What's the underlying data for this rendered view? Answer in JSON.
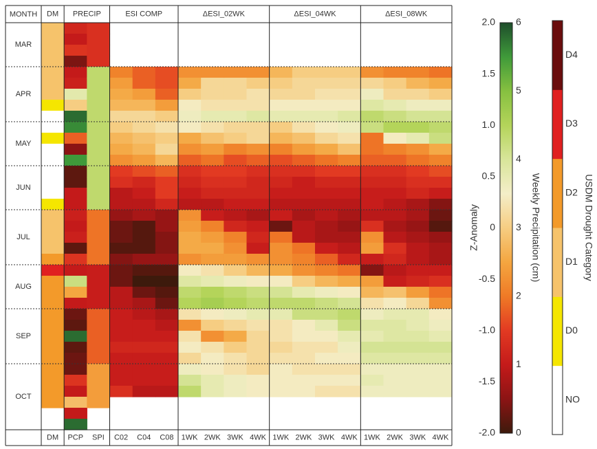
{
  "chart_data": {
    "type": "heatmap",
    "row_header": "MONTH",
    "categories": [
      "MAR",
      null,
      null,
      null,
      "APR",
      null,
      null,
      null,
      null,
      "MAY",
      null,
      null,
      null,
      "JUN",
      null,
      null,
      null,
      "JUL",
      null,
      null,
      null,
      null,
      "AUG",
      null,
      null,
      null,
      "SEP",
      null,
      null,
      null,
      null,
      "OCT",
      null,
      null,
      null,
      null,
      null
    ],
    "groups": [
      {
        "label": "DM",
        "columns": [
          {
            "name": "DM",
            "scale": "category",
            "values": [
              2,
              2,
              2,
              2,
              2,
              2,
              2,
              1,
              0,
              0,
              1,
              0,
              0,
              0,
              0,
              0,
              1,
              2,
              2,
              2,
              2,
              3,
              4,
              3,
              3,
              3,
              3,
              3,
              3,
              3,
              3,
              3,
              3,
              3,
              3,
              null,
              null
            ]
          }
        ]
      },
      {
        "label": "PRECIP",
        "columns": [
          {
            "name": "PCP",
            "scale": "precip",
            "values": [
              1.2,
              1.0,
              1.4,
              0.4,
              1.0,
              1.1,
              3.8,
              3.0,
              5.8,
              5.6,
              1.8,
              0.5,
              5.5,
              0.2,
              0.2,
              1.0,
              1.0,
              1.1,
              1.0,
              1.1,
              0.2,
              1.4,
              1.0,
              4.2,
              2.5,
              1.0,
              0.3,
              0.2,
              5.8,
              0.2,
              0.3,
              0.3,
              1.4,
              1.0,
              2.8,
              1.0,
              5.8
            ]
          },
          {
            "name": "SPI",
            "scale": "z",
            "values": [
              -1.1,
              -1.1,
              -1.1,
              -1.1,
              0.9,
              0.9,
              0.9,
              0.9,
              0.9,
              0.9,
              0.9,
              0.9,
              0.9,
              0.9,
              0.9,
              0.9,
              0.9,
              -0.7,
              -0.7,
              -0.7,
              -0.7,
              -0.7,
              -1.3,
              -1.3,
              -1.3,
              -1.3,
              -0.8,
              -0.8,
              -0.8,
              -0.8,
              -0.8,
              -0.4,
              -0.4,
              -0.4,
              -0.4,
              null,
              null
            ]
          }
        ]
      },
      {
        "label": "ESI COMP",
        "columns": [
          {
            "name": "C02",
            "scale": "z",
            "values": [
              null,
              null,
              null,
              null,
              -0.6,
              -0.4,
              -0.3,
              -0.2,
              0.1,
              0.0,
              -0.2,
              -0.3,
              -0.5,
              -1.0,
              -1.1,
              -1.4,
              -1.4,
              -1.6,
              -1.8,
              -1.8,
              -1.9,
              -1.7,
              -1.8,
              -1.8,
              -1.4,
              -1.4,
              -1.3,
              -1.3,
              -1.3,
              -1.2,
              -1.3,
              -1.3,
              -1.3,
              -1.1,
              null,
              null,
              null
            ]
          },
          {
            "name": "C04",
            "scale": "z",
            "values": [
              null,
              null,
              null,
              null,
              -0.8,
              -0.8,
              -0.4,
              -0.2,
              0.1,
              0.1,
              -0.1,
              -0.2,
              -0.4,
              -0.9,
              -1.2,
              -1.3,
              -1.4,
              -1.5,
              -1.9,
              -1.9,
              -1.9,
              -1.6,
              -1.9,
              -2.0,
              -1.8,
              -1.5,
              -1.4,
              -1.3,
              -1.3,
              -1.2,
              -1.3,
              -1.3,
              -1.3,
              -1.4,
              null,
              null,
              null
            ]
          },
          {
            "name": "C08",
            "scale": "z",
            "values": [
              null,
              null,
              null,
              null,
              -0.9,
              -0.9,
              -0.8,
              -0.4,
              0.0,
              0.2,
              0.0,
              0.1,
              -0.2,
              -0.8,
              -1.0,
              -1.0,
              -1.2,
              -1.6,
              -1.6,
              -1.7,
              -1.7,
              -1.6,
              -1.9,
              -2.0,
              -1.9,
              -1.8,
              -1.5,
              -1.4,
              -1.3,
              -1.2,
              -1.3,
              -1.3,
              -1.3,
              -1.4,
              null,
              null,
              null
            ]
          }
        ]
      },
      {
        "label": "ΔESI_02WK",
        "columns": [
          {
            "name": "1WK",
            "scale": "z",
            "values": [
              null,
              null,
              null,
              null,
              -0.5,
              -0.3,
              0.0,
              0.3,
              0.4,
              0.3,
              -0.3,
              -0.5,
              -0.8,
              -1.1,
              -1.2,
              -1.3,
              -1.4,
              -0.5,
              -0.4,
              -0.3,
              -0.3,
              -0.5,
              0.3,
              0.6,
              0.9,
              1.0,
              0.2,
              -0.5,
              0.2,
              0.3,
              0.1,
              0.4,
              0.7,
              0.9,
              null,
              null,
              null
            ]
          },
          {
            "name": "2WK",
            "scale": "z",
            "values": [
              null,
              null,
              null,
              null,
              -0.5,
              0.1,
              0.1,
              0.2,
              0.5,
              0.2,
              -0.1,
              -0.4,
              -0.7,
              -1.0,
              -1.1,
              -1.2,
              -1.4,
              -1.3,
              -0.6,
              -0.4,
              -0.3,
              -0.4,
              0.2,
              0.5,
              1.0,
              1.1,
              0.3,
              0.0,
              -0.5,
              0.2,
              0.3,
              0.3,
              0.5,
              0.5,
              null,
              null,
              null
            ]
          },
          {
            "name": "3WK",
            "scale": "z",
            "values": [
              null,
              null,
              null,
              null,
              -0.5,
              0.1,
              0.1,
              0.2,
              0.5,
              0.1,
              0.0,
              -0.6,
              -0.9,
              -1.0,
              -1.1,
              -1.2,
              -1.3,
              -1.4,
              -1.2,
              -0.6,
              -0.5,
              -0.4,
              0.0,
              0.4,
              0.9,
              1.0,
              0.4,
              0.1,
              -0.3,
              0.0,
              0.2,
              0.2,
              0.4,
              0.4,
              null,
              null,
              null
            ]
          },
          {
            "name": "4WK",
            "scale": "z",
            "values": [
              null,
              null,
              null,
              null,
              -0.5,
              0.0,
              0.2,
              0.2,
              0.6,
              0.1,
              0.1,
              -0.5,
              -0.8,
              -1.1,
              -1.2,
              -1.2,
              -1.3,
              -1.5,
              -1.3,
              -1.2,
              -1.3,
              -0.5,
              -0.2,
              0.3,
              0.8,
              0.9,
              0.5,
              0.2,
              0.1,
              0.1,
              0.1,
              0.1,
              0.3,
              0.3,
              null,
              null,
              null
            ]
          }
        ]
      },
      {
        "label": "ΔESI_04WK",
        "columns": [
          {
            "name": "1WK",
            "scale": "z",
            "values": [
              null,
              null,
              null,
              null,
              -0.2,
              0.0,
              0.1,
              0.3,
              0.5,
              0.0,
              -0.2,
              -0.6,
              -0.9,
              -1.1,
              -1.2,
              -1.3,
              -1.4,
              -1.3,
              -1.8,
              -0.7,
              -0.5,
              -0.5,
              -0.3,
              0.3,
              0.7,
              0.9,
              0.5,
              0.2,
              0.2,
              0.1,
              0.2,
              0.3,
              0.3,
              0.3,
              null,
              null,
              null
            ]
          },
          {
            "name": "2WK",
            "scale": "z",
            "values": [
              null,
              null,
              null,
              null,
              0.0,
              0.1,
              0.1,
              0.3,
              0.5,
              0.2,
              -0.1,
              -0.4,
              -0.8,
              -1.1,
              -1.3,
              -1.3,
              -1.4,
              -1.5,
              -1.4,
              -1.4,
              -0.7,
              -0.6,
              -0.5,
              0.0,
              0.5,
              0.9,
              0.8,
              0.3,
              0.3,
              0.2,
              0.2,
              0.2,
              0.3,
              0.3,
              null,
              null,
              null
            ]
          },
          {
            "name": "3WK",
            "scale": "z",
            "values": [
              null,
              null,
              null,
              null,
              0.0,
              0.1,
              0.2,
              0.3,
              0.5,
              0.3,
              0.1,
              -0.3,
              -0.7,
              -1.0,
              -1.2,
              -1.3,
              -1.4,
              -1.4,
              -1.5,
              -1.5,
              -1.3,
              -0.8,
              -0.6,
              -0.2,
              0.4,
              0.8,
              0.8,
              0.5,
              0.3,
              0.2,
              0.3,
              0.2,
              0.3,
              0.2,
              null,
              null,
              null
            ]
          },
          {
            "name": "4WK",
            "scale": "z",
            "values": [
              null,
              null,
              null,
              null,
              0.0,
              0.1,
              0.2,
              0.3,
              0.6,
              0.4,
              0.2,
              -0.1,
              -0.6,
              -1.0,
              -1.2,
              -1.3,
              -1.4,
              -1.5,
              -1.6,
              -1.5,
              -1.4,
              -1.2,
              -0.7,
              -0.3,
              0.3,
              0.7,
              0.9,
              0.8,
              0.5,
              0.4,
              0.3,
              0.2,
              0.3,
              0.2,
              null,
              null,
              null
            ]
          }
        ]
      },
      {
        "label": "ΔESI_08WK",
        "columns": [
          {
            "name": "1WK",
            "scale": "z",
            "values": [
              null,
              null,
              null,
              null,
              -0.5,
              0.1,
              0.4,
              0.6,
              0.9,
              0.8,
              -0.7,
              -0.7,
              -0.8,
              -1.1,
              -1.2,
              -1.3,
              -1.3,
              -1.4,
              -1.1,
              -0.5,
              -0.4,
              -1.3,
              -1.7,
              -0.4,
              -0.2,
              0.2,
              0.4,
              0.6,
              0.5,
              0.7,
              0.6,
              0.4,
              0.5,
              0.4,
              null,
              null,
              null
            ]
          },
          {
            "name": "2WK",
            "scale": "z",
            "values": [
              null,
              null,
              null,
              null,
              -0.6,
              0.0,
              0.1,
              0.5,
              0.8,
              1.0,
              0.3,
              -0.6,
              -0.8,
              -1.1,
              -1.2,
              -1.3,
              -1.4,
              -1.4,
              -1.5,
              -1.4,
              -1.1,
              -1.2,
              -1.4,
              -1.3,
              -0.1,
              0.3,
              0.5,
              0.6,
              0.6,
              0.7,
              0.6,
              0.4,
              0.4,
              0.4,
              null,
              null,
              null
            ]
          },
          {
            "name": "3WK",
            "scale": "z",
            "values": [
              null,
              null,
              null,
              null,
              -0.6,
              -0.2,
              0.1,
              0.4,
              0.7,
              1.0,
              0.5,
              -0.5,
              -0.7,
              -1.0,
              -1.1,
              -1.2,
              -1.5,
              -1.5,
              -1.6,
              -1.5,
              -1.4,
              -1.4,
              -1.3,
              -1.2,
              -0.4,
              0.1,
              0.5,
              0.5,
              0.6,
              0.7,
              0.6,
              0.4,
              0.4,
              0.4,
              null,
              null,
              null
            ]
          },
          {
            "name": "4WK",
            "scale": "z",
            "values": [
              null,
              null,
              null,
              null,
              -0.7,
              -0.3,
              0.0,
              0.4,
              0.7,
              0.9,
              0.8,
              -0.3,
              -0.6,
              -0.9,
              -1.1,
              -1.3,
              -1.7,
              -1.8,
              -1.9,
              -1.6,
              -1.5,
              -1.5,
              -1.3,
              -1.1,
              -0.7,
              -0.5,
              0.3,
              0.4,
              0.5,
              0.7,
              0.6,
              0.4,
              0.4,
              0.4,
              null,
              null,
              null
            ]
          }
        ]
      }
    ],
    "z_scale": {
      "label": "Z-Anomaly",
      "ylim": [
        -2,
        2
      ],
      "yticks": [
        {
          "value": 2,
          "label": "2.0"
        },
        1.5,
        {
          "value": 1,
          "label": "1.0"
        },
        0.5,
        0,
        -0.5,
        {
          "value": -1,
          "label": "-1.0"
        },
        -1.5,
        {
          "value": -2,
          "label": "-2.0"
        }
      ],
      "colors": [
        "#3d1a0c",
        "#8c1414",
        "#c41a1a",
        "#e23a22",
        "#ef7a26",
        "#f4a640",
        "#f6cd82",
        "#f4eec8",
        "#d8e59a",
        "#b4d45a",
        "#86c040",
        "#3f9a3a",
        "#1e4d2b"
      ]
    },
    "precip_scale": {
      "label": "Weekly Precipitation (cm)",
      "ylim": [
        0,
        6
      ],
      "yticks": [
        0,
        1,
        2,
        3,
        4,
        5,
        6
      ]
    },
    "category_scale": {
      "label": "USDM Drought Category",
      "categories": [
        "NO",
        "D0",
        "D1",
        "D2",
        "D3",
        "D4"
      ],
      "colors": [
        "#ffffff",
        "#f5e600",
        "#f6c36b",
        "#f39a2a",
        "#e02020",
        "#6a0d0d"
      ]
    }
  }
}
